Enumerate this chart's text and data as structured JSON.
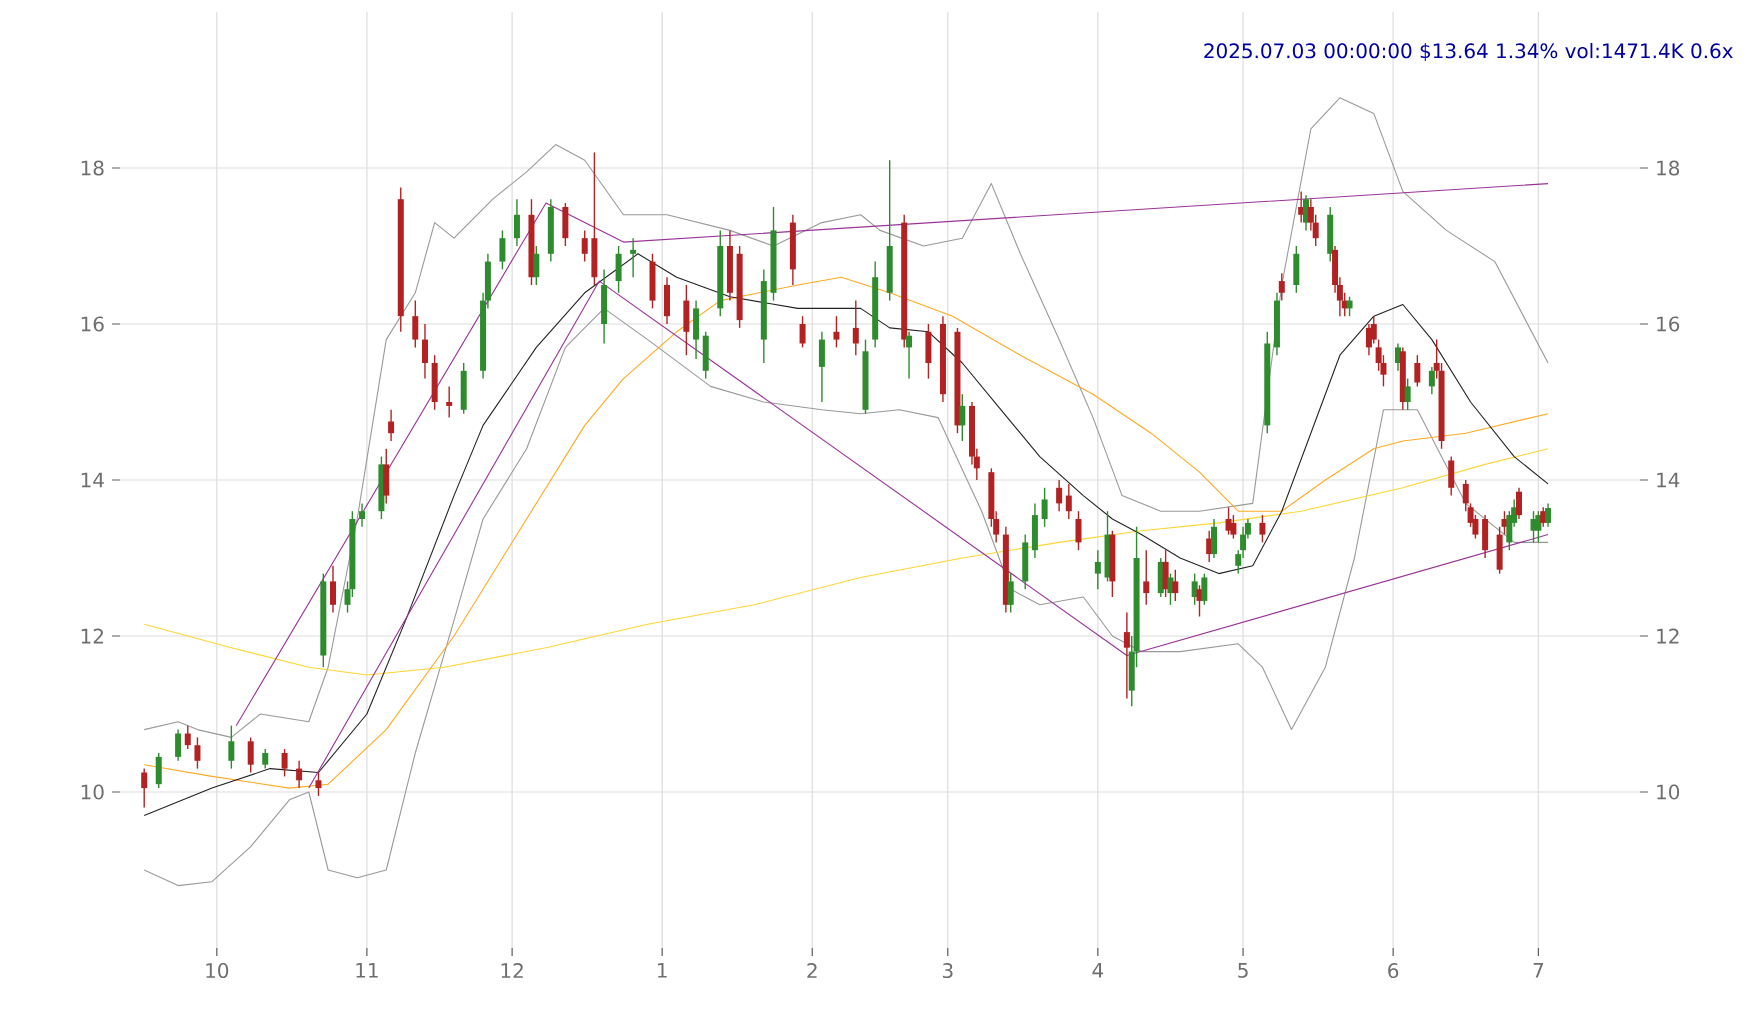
{
  "chart_data": {
    "type": "candlestick",
    "title": "2025.07.03 00:00:00 $13.64 1.34% vol:1471.4K 0.6x",
    "x": [
      "2024-09-16",
      "2024-09-19",
      "2024-09-23",
      "2024-09-25",
      "2024-09-27",
      "2024-10-04",
      "2024-10-08",
      "2024-10-11",
      "2024-10-15",
      "2024-10-18",
      "2024-10-22",
      "2024-10-23",
      "2024-10-25",
      "2024-10-28",
      "2024-10-29",
      "2024-10-31",
      "2024-11-04",
      "2024-11-05",
      "2024-11-06",
      "2024-11-08",
      "2024-11-11",
      "2024-11-13",
      "2024-11-15",
      "2024-11-18",
      "2024-11-21",
      "2024-11-25",
      "2024-11-26",
      "2024-11-29",
      "2024-12-02",
      "2024-12-05",
      "2024-12-06",
      "2024-12-09",
      "2024-12-12",
      "2024-12-16",
      "2024-12-18",
      "2024-12-20",
      "2024-12-23",
      "2024-12-26",
      "2024-12-30",
      "2025-01-02",
      "2025-01-06",
      "2025-01-08",
      "2025-01-10",
      "2025-01-13",
      "2025-01-15",
      "2025-01-17",
      "2025-01-22",
      "2025-01-24",
      "2025-01-28",
      "2025-01-30",
      "2025-02-03",
      "2025-02-06",
      "2025-02-10",
      "2025-02-12",
      "2025-02-14",
      "2025-02-17",
      "2025-02-20",
      "2025-02-21",
      "2025-02-25",
      "2025-02-28",
      "2025-03-03",
      "2025-03-04",
      "2025-03-06",
      "2025-03-07",
      "2025-03-10",
      "2025-03-11",
      "2025-03-13",
      "2025-03-14",
      "2025-03-17",
      "2025-03-19",
      "2025-03-21",
      "2025-03-24",
      "2025-03-26",
      "2025-03-28",
      "2025-04-01",
      "2025-04-03",
      "2025-04-04",
      "2025-04-07",
      "2025-04-08",
      "2025-04-09",
      "2025-04-11",
      "2025-04-14",
      "2025-04-15",
      "2025-04-16",
      "2025-04-17",
      "2025-04-21",
      "2025-04-22",
      "2025-04-23",
      "2025-04-24",
      "2025-04-25",
      "2025-04-28",
      "2025-04-29",
      "2025-04-30",
      "2025-05-01",
      "2025-05-02",
      "2025-05-05",
      "2025-05-06",
      "2025-05-08",
      "2025-05-09",
      "2025-05-12",
      "2025-05-13",
      "2025-05-14",
      "2025-05-15",
      "2025-05-16",
      "2025-05-19",
      "2025-05-20",
      "2025-05-21",
      "2025-05-22",
      "2025-05-23",
      "2025-05-27",
      "2025-05-28",
      "2025-05-29",
      "2025-05-30",
      "2025-06-02",
      "2025-06-03",
      "2025-06-04",
      "2025-06-06",
      "2025-06-09",
      "2025-06-10",
      "2025-06-11",
      "2025-06-13",
      "2025-06-16",
      "2025-06-17",
      "2025-06-18",
      "2025-06-20",
      "2025-06-23",
      "2025-06-24",
      "2025-06-25",
      "2025-06-26",
      "2025-06-27",
      "2025-06-30",
      "2025-07-01",
      "2025-07-02",
      "2025-07-03"
    ],
    "ohlc": [
      [
        10.25,
        10.3,
        9.8,
        10.05
      ],
      [
        10.1,
        10.5,
        10.05,
        10.45
      ],
      [
        10.45,
        10.8,
        10.4,
        10.75
      ],
      [
        10.75,
        10.85,
        10.55,
        10.6
      ],
      [
        10.6,
        10.7,
        10.3,
        10.4
      ],
      [
        10.4,
        10.85,
        10.3,
        10.65
      ],
      [
        10.65,
        10.7,
        10.25,
        10.35
      ],
      [
        10.35,
        10.55,
        10.3,
        10.5
      ],
      [
        10.5,
        10.55,
        10.2,
        10.3
      ],
      [
        10.3,
        10.4,
        10.05,
        10.15
      ],
      [
        10.15,
        10.25,
        9.95,
        10.05
      ],
      [
        11.75,
        12.8,
        11.6,
        12.7
      ],
      [
        12.7,
        12.9,
        12.3,
        12.4
      ],
      [
        12.4,
        12.7,
        12.3,
        12.6
      ],
      [
        12.6,
        13.6,
        12.5,
        13.5
      ],
      [
        13.5,
        13.7,
        13.4,
        13.6
      ],
      [
        13.6,
        14.3,
        13.5,
        14.2
      ],
      [
        14.2,
        14.4,
        13.7,
        13.8
      ],
      [
        14.75,
        14.9,
        14.5,
        14.6
      ],
      [
        17.6,
        17.75,
        15.9,
        16.1
      ],
      [
        16.1,
        16.3,
        15.7,
        15.8
      ],
      [
        15.8,
        16.0,
        15.3,
        15.5
      ],
      [
        15.5,
        15.6,
        14.9,
        15.0
      ],
      [
        15.0,
        15.2,
        14.8,
        14.95
      ],
      [
        14.9,
        15.5,
        14.85,
        15.4
      ],
      [
        15.4,
        16.4,
        15.3,
        16.3
      ],
      [
        16.3,
        16.9,
        16.2,
        16.8
      ],
      [
        16.8,
        17.2,
        16.7,
        17.1
      ],
      [
        17.1,
        17.6,
        17.0,
        17.4
      ],
      [
        17.4,
        17.6,
        16.5,
        16.6
      ],
      [
        16.6,
        17.0,
        16.5,
        16.9
      ],
      [
        16.9,
        17.6,
        16.8,
        17.5
      ],
      [
        17.5,
        17.55,
        17.0,
        17.1
      ],
      [
        17.1,
        17.2,
        16.8,
        16.9
      ],
      [
        17.1,
        18.2,
        16.5,
        16.6
      ],
      [
        16.0,
        16.7,
        15.75,
        16.5
      ],
      [
        16.55,
        17.0,
        16.4,
        16.9
      ],
      [
        16.9,
        17.1,
        16.6,
        16.95
      ],
      [
        16.8,
        16.9,
        16.2,
        16.3
      ],
      [
        16.5,
        16.6,
        16.0,
        16.1
      ],
      [
        16.3,
        16.5,
        15.6,
        15.9
      ],
      [
        15.8,
        16.3,
        15.55,
        16.2
      ],
      [
        15.4,
        15.9,
        15.3,
        15.85
      ],
      [
        16.2,
        17.2,
        16.1,
        17.0
      ],
      [
        17.0,
        17.2,
        16.3,
        16.4
      ],
      [
        16.9,
        17.0,
        15.95,
        16.05
      ],
      [
        15.8,
        16.7,
        15.5,
        16.55
      ],
      [
        16.4,
        17.5,
        16.3,
        17.2
      ],
      [
        17.3,
        17.4,
        16.5,
        16.7
      ],
      [
        16.0,
        16.1,
        15.7,
        15.75
      ],
      [
        15.45,
        15.9,
        15.0,
        15.8
      ],
      [
        15.9,
        16.1,
        15.7,
        15.8
      ],
      [
        15.95,
        16.3,
        15.6,
        15.75
      ],
      [
        14.9,
        15.8,
        14.85,
        15.65
      ],
      [
        15.8,
        16.8,
        15.7,
        16.6
      ],
      [
        16.4,
        18.1,
        16.3,
        17.0
      ],
      [
        17.3,
        17.4,
        15.7,
        15.8
      ],
      [
        15.7,
        15.9,
        15.3,
        15.85
      ],
      [
        15.9,
        16.0,
        15.3,
        15.5
      ],
      [
        16.0,
        16.1,
        15.0,
        15.1
      ],
      [
        15.9,
        15.95,
        14.6,
        14.7
      ],
      [
        14.7,
        15.1,
        14.5,
        14.95
      ],
      [
        14.95,
        15.0,
        14.2,
        14.3
      ],
      [
        14.3,
        14.4,
        14.0,
        14.15
      ],
      [
        14.1,
        14.15,
        13.4,
        13.5
      ],
      [
        13.5,
        13.6,
        13.2,
        13.3
      ],
      [
        13.3,
        13.4,
        12.3,
        12.4
      ],
      [
        12.4,
        12.8,
        12.3,
        12.7
      ],
      [
        12.7,
        13.3,
        12.6,
        13.2
      ],
      [
        13.1,
        13.7,
        13.0,
        13.55
      ],
      [
        13.5,
        13.9,
        13.4,
        13.75
      ],
      [
        13.9,
        14.0,
        13.6,
        13.7
      ],
      [
        13.8,
        13.95,
        13.5,
        13.6
      ],
      [
        13.5,
        13.6,
        13.1,
        13.2
      ],
      [
        12.8,
        13.1,
        12.6,
        12.95
      ],
      [
        12.75,
        13.6,
        12.7,
        13.3
      ],
      [
        13.3,
        13.35,
        12.5,
        12.7
      ],
      [
        12.05,
        12.3,
        11.2,
        11.85
      ],
      [
        11.3,
        12.0,
        11.1,
        11.8
      ],
      [
        11.8,
        13.4,
        11.6,
        13.0
      ],
      [
        12.7,
        13.1,
        12.4,
        12.55
      ],
      [
        12.55,
        13.0,
        12.5,
        12.95
      ],
      [
        12.95,
        13.1,
        12.5,
        12.6
      ],
      [
        12.55,
        12.8,
        12.4,
        12.75
      ],
      [
        12.7,
        12.85,
        12.45,
        12.55
      ],
      [
        12.5,
        12.8,
        12.4,
        12.7
      ],
      [
        12.6,
        12.65,
        12.25,
        12.45
      ],
      [
        12.45,
        12.8,
        12.4,
        12.75
      ],
      [
        13.25,
        13.35,
        12.95,
        13.05
      ],
      [
        13.05,
        13.5,
        13.0,
        13.4
      ],
      [
        13.5,
        13.65,
        13.3,
        13.35
      ],
      [
        13.45,
        13.55,
        13.25,
        13.3
      ],
      [
        12.9,
        13.1,
        12.8,
        13.05
      ],
      [
        13.1,
        13.4,
        13.0,
        13.3
      ],
      [
        13.3,
        13.5,
        13.25,
        13.45
      ],
      [
        13.45,
        13.55,
        13.2,
        13.3
      ],
      [
        14.7,
        15.9,
        14.6,
        15.75
      ],
      [
        15.7,
        16.4,
        15.6,
        16.3
      ],
      [
        16.55,
        16.65,
        16.3,
        16.4
      ],
      [
        16.5,
        17.0,
        16.4,
        16.9
      ],
      [
        17.5,
        17.7,
        17.3,
        17.4
      ],
      [
        17.3,
        17.65,
        17.2,
        17.6
      ],
      [
        17.5,
        17.6,
        17.2,
        17.3
      ],
      [
        17.3,
        17.4,
        17.0,
        17.1
      ],
      [
        16.9,
        17.5,
        16.8,
        17.4
      ],
      [
        16.95,
        17.0,
        16.4,
        16.5
      ],
      [
        16.5,
        16.6,
        16.1,
        16.3
      ],
      [
        16.3,
        16.4,
        16.1,
        16.2
      ],
      [
        16.2,
        16.35,
        16.1,
        16.3
      ],
      [
        15.95,
        16.0,
        15.6,
        15.7
      ],
      [
        16.0,
        16.1,
        15.75,
        15.8
      ],
      [
        15.7,
        15.8,
        15.4,
        15.5
      ],
      [
        15.5,
        15.6,
        15.2,
        15.35
      ],
      [
        15.5,
        15.75,
        15.4,
        15.7
      ],
      [
        15.65,
        15.7,
        14.9,
        15.0
      ],
      [
        15.0,
        15.3,
        14.9,
        15.2
      ],
      [
        15.5,
        15.6,
        15.2,
        15.25
      ],
      [
        15.2,
        15.45,
        15.1,
        15.4
      ],
      [
        15.5,
        15.8,
        15.3,
        15.4
      ],
      [
        15.4,
        15.5,
        14.4,
        14.5
      ],
      [
        14.25,
        14.3,
        13.8,
        13.9
      ],
      [
        13.95,
        14.0,
        13.6,
        13.7
      ],
      [
        13.65,
        13.7,
        13.4,
        13.45
      ],
      [
        13.5,
        13.55,
        13.25,
        13.3
      ],
      [
        13.5,
        13.55,
        13.0,
        13.1
      ],
      [
        13.3,
        13.4,
        12.8,
        12.85
      ],
      [
        13.5,
        13.6,
        13.3,
        13.4
      ],
      [
        13.2,
        13.6,
        13.1,
        13.55
      ],
      [
        13.45,
        13.75,
        13.4,
        13.65
      ],
      [
        13.85,
        13.9,
        13.5,
        13.55
      ],
      [
        13.35,
        13.6,
        13.2,
        13.5
      ],
      [
        13.35,
        13.6,
        13.2,
        13.55
      ],
      [
        13.6,
        13.65,
        13.4,
        13.45
      ],
      [
        13.45,
        13.7,
        13.4,
        13.64
      ]
    ],
    "series": [
      {
        "type": "line",
        "color": "#999999",
        "x": [
          "2024-09-16",
          "2024-09-23",
          "2024-09-27",
          "2024-10-04",
          "2024-10-10",
          "2024-10-20",
          "2024-10-24",
          "2024-10-30",
          "2024-11-05",
          "2024-11-11",
          "2024-11-15",
          "2024-11-19",
          "2024-11-27",
          "2024-12-04",
          "2024-12-10",
          "2024-12-16",
          "2024-12-24",
          "2025-01-02",
          "2025-01-15",
          "2025-01-24",
          "2025-02-03",
          "2025-02-11",
          "2025-02-15",
          "2025-02-24",
          "2025-03-04",
          "2025-03-10",
          "2025-03-16",
          "2025-03-24",
          "2025-03-31",
          "2025-04-06",
          "2025-04-14",
          "2025-04-22",
          "2025-05-03",
          "2025-05-09",
          "2025-05-15",
          "2025-05-21",
          "2025-05-28",
          "2025-06-03",
          "2025-06-12",
          "2025-06-22",
          "2025-07-03"
        ],
        "values": [
          10.8,
          10.9,
          10.8,
          10.7,
          11.0,
          10.9,
          11.6,
          13.5,
          15.8,
          16.4,
          17.3,
          17.1,
          17.6,
          17.95,
          18.3,
          18.1,
          17.4,
          17.4,
          17.2,
          17.0,
          17.3,
          17.4,
          17.2,
          17.0,
          17.1,
          17.8,
          16.9,
          15.8,
          14.8,
          13.8,
          13.6,
          13.6,
          13.7,
          16.5,
          18.5,
          18.9,
          18.7,
          17.7,
          17.2,
          16.8,
          15.5
        ]
      },
      {
        "type": "line",
        "color": "#999999",
        "x": [
          "2024-09-16",
          "2024-09-23",
          "2024-09-30",
          "2024-10-08",
          "2024-10-16",
          "2024-10-20",
          "2024-10-24",
          "2024-10-30",
          "2024-11-05",
          "2024-11-11",
          "2024-11-19",
          "2024-11-25",
          "2024-12-04",
          "2024-12-12",
          "2024-12-20",
          "2024-12-29",
          "2025-01-11",
          "2025-01-22",
          "2025-02-03",
          "2025-02-11",
          "2025-02-19",
          "2025-02-27",
          "2025-03-08",
          "2025-03-14",
          "2025-03-20",
          "2025-03-29",
          "2025-04-04",
          "2025-04-10",
          "2025-04-18",
          "2025-04-30",
          "2025-05-05",
          "2025-05-11",
          "2025-05-18",
          "2025-05-24",
          "2025-05-30",
          "2025-06-06",
          "2025-06-16",
          "2025-06-26",
          "2025-07-03"
        ],
        "values": [
          9.0,
          8.8,
          8.85,
          9.3,
          9.9,
          10.0,
          9.0,
          8.9,
          9.0,
          10.5,
          12.2,
          13.5,
          14.4,
          15.7,
          16.2,
          15.8,
          15.2,
          15.0,
          14.9,
          14.85,
          14.9,
          14.8,
          13.6,
          12.6,
          12.4,
          12.5,
          12.0,
          11.8,
          11.8,
          11.9,
          11.6,
          10.8,
          11.6,
          13.0,
          14.9,
          14.9,
          13.7,
          13.2,
          13.2
        ]
      },
      {
        "type": "line",
        "color": "#ffd633",
        "x": [
          "2024-09-16",
          "2024-10-04",
          "2024-10-20",
          "2024-11-01",
          "2024-11-17",
          "2024-12-08",
          "2024-12-29",
          "2025-01-20",
          "2025-02-11",
          "2025-03-04",
          "2025-03-24",
          "2025-04-10",
          "2025-04-26",
          "2025-05-13",
          "2025-06-03",
          "2025-06-20",
          "2025-07-03"
        ],
        "values": [
          12.15,
          11.85,
          11.6,
          11.5,
          11.6,
          11.85,
          12.15,
          12.4,
          12.75,
          13.0,
          13.2,
          13.35,
          13.45,
          13.6,
          13.9,
          14.2,
          14.4
        ]
      },
      {
        "type": "line",
        "color": "#ffaa22",
        "x": [
          "2024-09-16",
          "2024-09-30",
          "2024-10-16",
          "2024-10-24",
          "2024-11-05",
          "2024-11-19",
          "2024-12-04",
          "2024-12-16",
          "2024-12-24",
          "2025-01-04",
          "2025-01-13",
          "2025-01-29",
          "2025-02-07",
          "2025-02-17",
          "2025-03-02",
          "2025-03-16",
          "2025-03-31",
          "2025-04-12",
          "2025-04-22",
          "2025-04-30",
          "2025-05-09",
          "2025-05-18",
          "2025-05-28",
          "2025-06-03",
          "2025-06-16",
          "2025-07-03"
        ],
        "values": [
          10.35,
          10.2,
          10.05,
          10.1,
          10.8,
          12.0,
          13.5,
          14.7,
          15.3,
          15.9,
          16.3,
          16.5,
          16.6,
          16.4,
          16.1,
          15.6,
          15.1,
          14.6,
          14.1,
          13.6,
          13.6,
          14.0,
          14.4,
          14.5,
          14.6,
          14.85
        ]
      },
      {
        "type": "line",
        "color": "#222222",
        "x": [
          "2024-09-16",
          "2024-09-30",
          "2024-10-12",
          "2024-10-22",
          "2024-11-01",
          "2024-11-09",
          "2024-11-19",
          "2024-11-25",
          "2024-12-06",
          "2024-12-16",
          "2024-12-27",
          "2025-01-04",
          "2025-01-15",
          "2025-01-29",
          "2025-02-11",
          "2025-02-17",
          "2025-02-25",
          "2025-03-04",
          "2025-03-12",
          "2025-03-20",
          "2025-03-29",
          "2025-04-04",
          "2025-04-10",
          "2025-04-18",
          "2025-04-26",
          "2025-05-03",
          "2025-05-09",
          "2025-05-15",
          "2025-05-21",
          "2025-05-28",
          "2025-06-03",
          "2025-06-09",
          "2025-06-17",
          "2025-06-26",
          "2025-07-03"
        ],
        "values": [
          9.7,
          10.05,
          10.3,
          10.25,
          11.0,
          12.2,
          13.8,
          14.7,
          15.7,
          16.4,
          16.9,
          16.6,
          16.35,
          16.2,
          16.2,
          15.95,
          15.9,
          15.5,
          14.9,
          14.3,
          13.8,
          13.5,
          13.3,
          13.0,
          12.8,
          12.9,
          13.6,
          14.6,
          15.6,
          16.1,
          16.25,
          15.8,
          15.0,
          14.3,
          13.95
        ]
      },
      {
        "type": "line",
        "color": "#993399",
        "x": [
          "2024-10-05",
          "2024-12-08",
          "2024-12-24",
          "2025-07-03"
        ],
        "values": [
          10.85,
          17.55,
          17.05,
          17.8
        ]
      },
      {
        "type": "line",
        "color": "#993399",
        "x": [
          "2024-10-20",
          "2024-12-19",
          "2025-04-07",
          "2025-07-03"
        ],
        "values": [
          10.05,
          16.55,
          11.75,
          13.3
        ]
      }
    ],
    "xlim": [
      "2024-09-11",
      "2025-07-22"
    ],
    "xticks": [
      {
        "value": "2024-10-01",
        "label": "10"
      },
      {
        "value": "2024-11-01",
        "label": "11"
      },
      {
        "value": "2024-12-01",
        "label": "12"
      },
      {
        "value": "2025-01-01",
        "label": "1"
      },
      {
        "value": "2025-02-01",
        "label": "2"
      },
      {
        "value": "2025-03-01",
        "label": "3"
      },
      {
        "value": "2025-04-01",
        "label": "4"
      },
      {
        "value": "2025-05-01",
        "label": "5"
      },
      {
        "value": "2025-06-01",
        "label": "6"
      },
      {
        "value": "2025-07-01",
        "label": "7"
      }
    ],
    "ylim": [
      8,
      20
    ],
    "yticks": [
      10,
      12,
      14,
      16,
      18
    ],
    "y2lim": [
      8,
      20
    ],
    "y2ticks": [
      10,
      12,
      14,
      16,
      18
    ],
    "grid": true
  }
}
